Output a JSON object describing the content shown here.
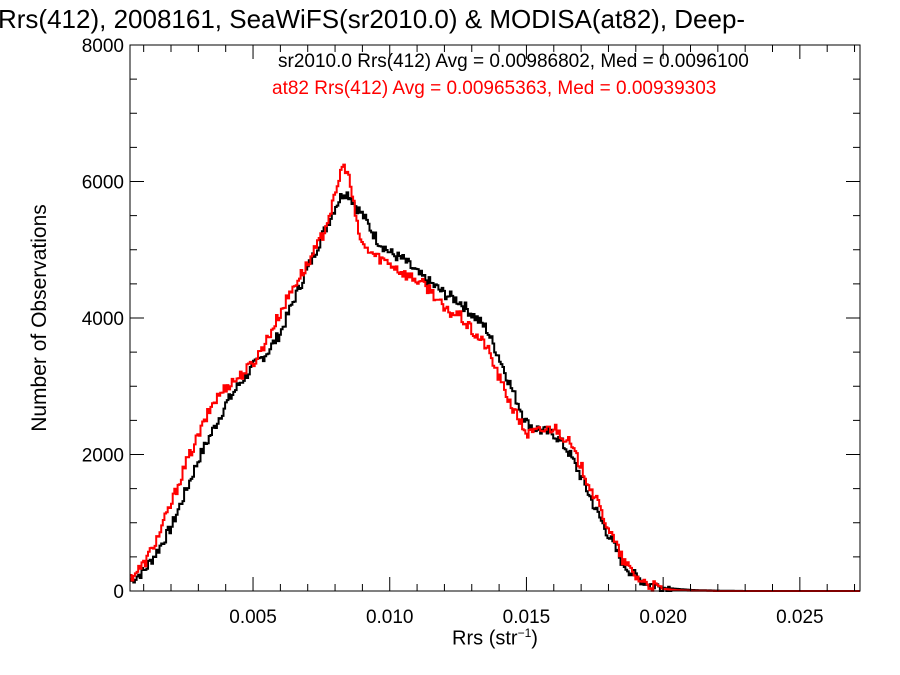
{
  "chart_data": {
    "type": "line",
    "title": "Rrs(412), 2008161, SeaWiFS(sr2010.0) & MODISA(at82), Deep-",
    "xlabel_main": "Rrs (str",
    "xlabel_sup": "−1",
    "xlabel_end": ")",
    "ylabel": "Number of Observations",
    "xlim": [
      0.0005,
      0.0272
    ],
    "ylim": [
      0,
      8000
    ],
    "xticks": [
      0.005,
      0.01,
      0.015,
      0.02,
      0.025
    ],
    "xtick_labels": [
      "0.005",
      "0.010",
      "0.015",
      "0.020",
      "0.025"
    ],
    "yticks": [
      0,
      2000,
      4000,
      6000,
      8000
    ],
    "ytick_labels": [
      "0",
      "2000",
      "4000",
      "6000",
      "8000"
    ],
    "legend": [
      {
        "text": "sr2010.0 Rrs(412) Avg = 0.00986802, Med = 0.0096100",
        "color": "#000000"
      },
      {
        "text": "at82 Rrs(412) Avg = 0.00965363, Med = 0.00939303",
        "color": "#ff0000"
      }
    ],
    "series": [
      {
        "color": "#000000",
        "x": [
          0.0005,
          0.001,
          0.0015,
          0.002,
          0.0025,
          0.003,
          0.0035,
          0.004,
          0.0045,
          0.005,
          0.0055,
          0.006,
          0.0065,
          0.007,
          0.0075,
          0.008,
          0.0083,
          0.0085,
          0.0088,
          0.009,
          0.0095,
          0.01,
          0.0105,
          0.011,
          0.0115,
          0.012,
          0.0125,
          0.013,
          0.0135,
          0.014,
          0.0145,
          0.015,
          0.0155,
          0.016,
          0.0165,
          0.017,
          0.0175,
          0.018,
          0.0185,
          0.019,
          0.0195,
          0.02,
          0.0205,
          0.021,
          0.022,
          0.023,
          0.025,
          0.0272
        ],
        "y": [
          150,
          300,
          600,
          950,
          1450,
          1950,
          2350,
          2750,
          3050,
          3300,
          3500,
          3800,
          4300,
          4750,
          5200,
          5650,
          5850,
          5800,
          5600,
          5500,
          5150,
          4950,
          4850,
          4650,
          4500,
          4350,
          4250,
          4050,
          3850,
          3400,
          2900,
          2450,
          2350,
          2300,
          2050,
          1650,
          1200,
          800,
          400,
          200,
          100,
          50,
          30,
          15,
          5,
          0,
          0,
          0
        ]
      },
      {
        "color": "#ff0000",
        "x": [
          0.0005,
          0.001,
          0.0015,
          0.002,
          0.0025,
          0.003,
          0.0035,
          0.004,
          0.0045,
          0.005,
          0.0055,
          0.006,
          0.0065,
          0.007,
          0.0075,
          0.008,
          0.0082,
          0.0084,
          0.0086,
          0.0088,
          0.009,
          0.0095,
          0.01,
          0.0105,
          0.011,
          0.0115,
          0.012,
          0.0125,
          0.013,
          0.0135,
          0.014,
          0.0145,
          0.015,
          0.0155,
          0.016,
          0.0165,
          0.017,
          0.0175,
          0.018,
          0.0185,
          0.019,
          0.0195,
          0.02,
          0.0205,
          0.021,
          0.022,
          0.023,
          0.025,
          0.0272
        ],
        "y": [
          200,
          400,
          800,
          1300,
          1850,
          2300,
          2750,
          3000,
          3150,
          3350,
          3700,
          4100,
          4500,
          4800,
          5200,
          5800,
          6200,
          6200,
          5800,
          5300,
          5050,
          4900,
          4800,
          4650,
          4550,
          4400,
          4100,
          4050,
          3800,
          3600,
          3100,
          2650,
          2300,
          2350,
          2400,
          2200,
          1800,
          1350,
          900,
          450,
          200,
          80,
          30,
          10,
          5,
          0,
          0,
          0,
          0
        ]
      }
    ]
  }
}
